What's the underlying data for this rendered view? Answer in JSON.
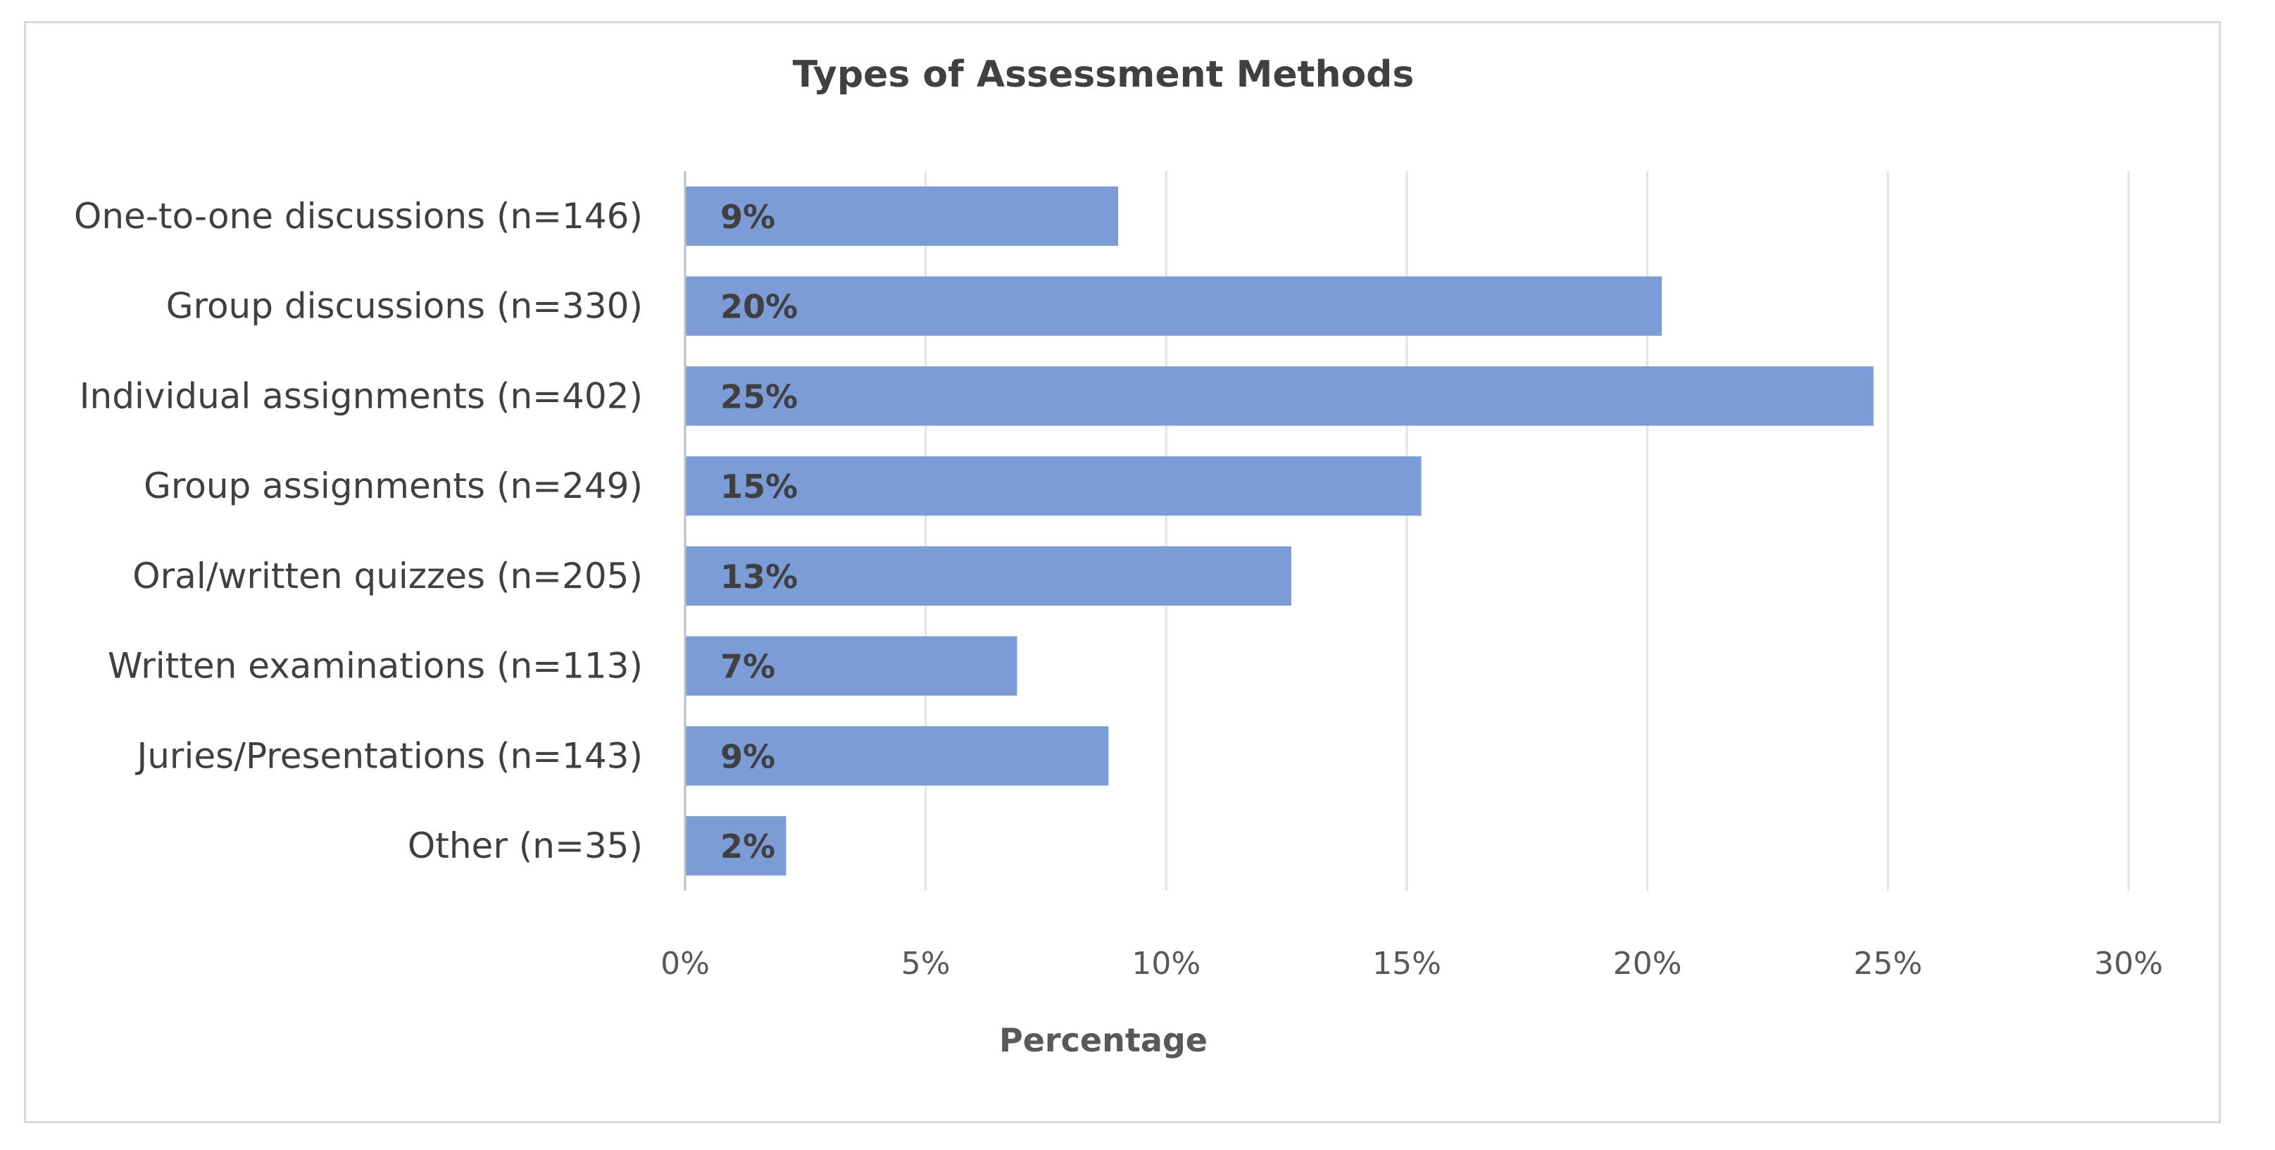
{
  "chart_data": {
    "type": "bar",
    "orientation": "horizontal",
    "title": "Types of Assessment Methods",
    "xlabel": "Percentage",
    "ylabel": "",
    "xlim": [
      0,
      30
    ],
    "x_ticks": [
      "0%",
      "5%",
      "10%",
      "15%",
      "20%",
      "25%",
      "30%"
    ],
    "categories": [
      "One-to-one discussions (n=146)",
      "Group discussions (n=330)",
      "Individual assignments (n=402)",
      "Group assignments (n=249)",
      "Oral/written quizzes (n=205)",
      "Written examinations (n=113)",
      "Juries/Presentations (n=143)",
      "Other (n=35)"
    ],
    "values": [
      9,
      20.3,
      24.7,
      15.3,
      12.6,
      6.9,
      8.8,
      2.1
    ],
    "data_labels": [
      "9%",
      "20%",
      "25%",
      "15%",
      "13%",
      "7%",
      "9%",
      "2%"
    ],
    "bar_color": "#7b9cd6",
    "grid": true,
    "legend": "none"
  }
}
